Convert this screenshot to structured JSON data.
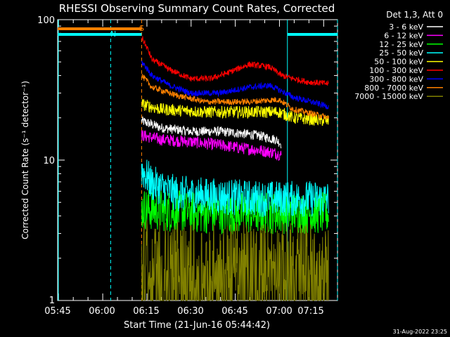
{
  "chart_data": {
    "type": "line",
    "title": "RHESSI Observing Summary Count Rates, Corrected",
    "xlabel": "Start Time (21-Jun-16 05:44:42)",
    "ylabel": "Corrected Count Rate (s⁻¹ detector⁻¹)",
    "yscale": "log",
    "ylim": [
      1,
      100
    ],
    "xlim_minutes": [
      0,
      95
    ],
    "x_ticks": [
      {
        "label": "05:45",
        "min": 0.3
      },
      {
        "label": "06:00",
        "min": 15.3
      },
      {
        "label": "06:15",
        "min": 30.3
      },
      {
        "label": "06:30",
        "min": 45.3
      },
      {
        "label": "06:45",
        "min": 60.3
      },
      {
        "label": "07:00",
        "min": 75.3
      },
      {
        "label": "07:15",
        "min": 90.3
      }
    ],
    "y_ticks": [
      {
        "label": "100",
        "value": 100
      },
      {
        "label": "10",
        "value": 10
      },
      {
        "label": "1",
        "value": 1
      }
    ],
    "legend_title": "Det 1,3, Att 0",
    "legend_position": "top-right, outside plot",
    "series": [
      {
        "name": "3 - 6 keV",
        "color": "#ffffff",
        "x": [
          28.5,
          35,
          45,
          55,
          62,
          68,
          74,
          76
        ],
        "y": [
          19,
          17,
          16,
          16,
          15.5,
          15,
          14,
          13
        ]
      },
      {
        "name": "6 - 12 keV",
        "color": "#ff00ff",
        "x": [
          28.5,
          35,
          45,
          55,
          62,
          68,
          74,
          76
        ],
        "y": [
          15,
          14,
          13.5,
          12.8,
          12.2,
          11.8,
          11.2,
          10.8
        ]
      },
      {
        "name": "12 - 25 keV",
        "color": "#00ff00",
        "x": [
          28.5,
          40,
          55,
          70,
          80,
          92
        ],
        "y": [
          4.5,
          4.3,
          4.2,
          4.2,
          4.2,
          4.2
        ]
      },
      {
        "name": "25 - 50 keV",
        "color": "#00ffff",
        "x": [
          28.5,
          32,
          40,
          55,
          70,
          80,
          92
        ],
        "y": [
          8.5,
          6.8,
          5.8,
          5.5,
          5.3,
          5.3,
          5.3
        ]
      },
      {
        "name": "50 - 100 keV",
        "color": "#ffff00",
        "x": [
          28.5,
          35,
          50,
          65,
          75,
          80,
          92
        ],
        "y": [
          25,
          23,
          22,
          22,
          22,
          20,
          19
        ]
      },
      {
        "name": "100 - 300 keV",
        "color": "#ff0000",
        "x": [
          28.5,
          32,
          38,
          45,
          52,
          58,
          65,
          72,
          76,
          80,
          85,
          92
        ],
        "y": [
          75,
          52,
          44,
          38,
          38,
          42,
          48,
          46,
          40,
          38,
          36,
          35
        ]
      },
      {
        "name": "300 - 800 keV",
        "color": "#0000ff",
        "x": [
          28.5,
          32,
          38,
          45,
          55,
          65,
          72,
          76,
          80,
          92
        ],
        "y": [
          50,
          40,
          34,
          30,
          30,
          33,
          34,
          31,
          28,
          24
        ]
      },
      {
        "name": "800 - 7000 keV",
        "color": "#ff8000",
        "x": [
          28.5,
          32,
          40,
          50,
          65,
          75,
          80,
          92
        ],
        "y": [
          40,
          33,
          29,
          26,
          26,
          27,
          23,
          20
        ]
      },
      {
        "name": "7000 - 15000 keV",
        "color": "#808000",
        "x": [
          28.5,
          40,
          55,
          70,
          80,
          92
        ],
        "y": [
          2.2,
          2.0,
          2.0,
          2.0,
          2.0,
          2.0
        ]
      }
    ],
    "flag_bars": [
      {
        "label": "N",
        "color": "#00ffff",
        "x": [
          0,
          28.5
        ],
        "y": 72
      },
      {
        "label": "",
        "color": "#00ffff",
        "x": [
          78,
          95
        ],
        "y": 72
      },
      {
        "label": "S",
        "color": "#ff8000",
        "x": [
          0,
          28.5
        ],
        "y": 80
      }
    ],
    "event_lines": [
      {
        "color": "#00ffff",
        "min": 18
      },
      {
        "color": "#ff8000",
        "min": 28.5
      },
      {
        "color": "#00ffff",
        "min": 95
      }
    ]
  },
  "footer_timestamp": "31-Aug-2022 23:25"
}
